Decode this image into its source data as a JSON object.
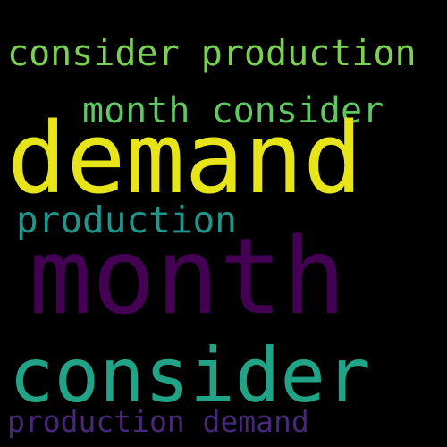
{
  "words": [
    {
      "text": "consider production",
      "color": "#7ad151"
    },
    {
      "text": "month consider",
      "color": "#5ec962"
    },
    {
      "text": "demand",
      "color": "#e7e419"
    },
    {
      "text": "production",
      "color": "#1f968b"
    },
    {
      "text": "month",
      "color": "#440154"
    },
    {
      "text": "consider",
      "color": "#20a386"
    },
    {
      "text": "production demand",
      "color": "#482878"
    }
  ],
  "colors": {
    "background": "#000000"
  }
}
